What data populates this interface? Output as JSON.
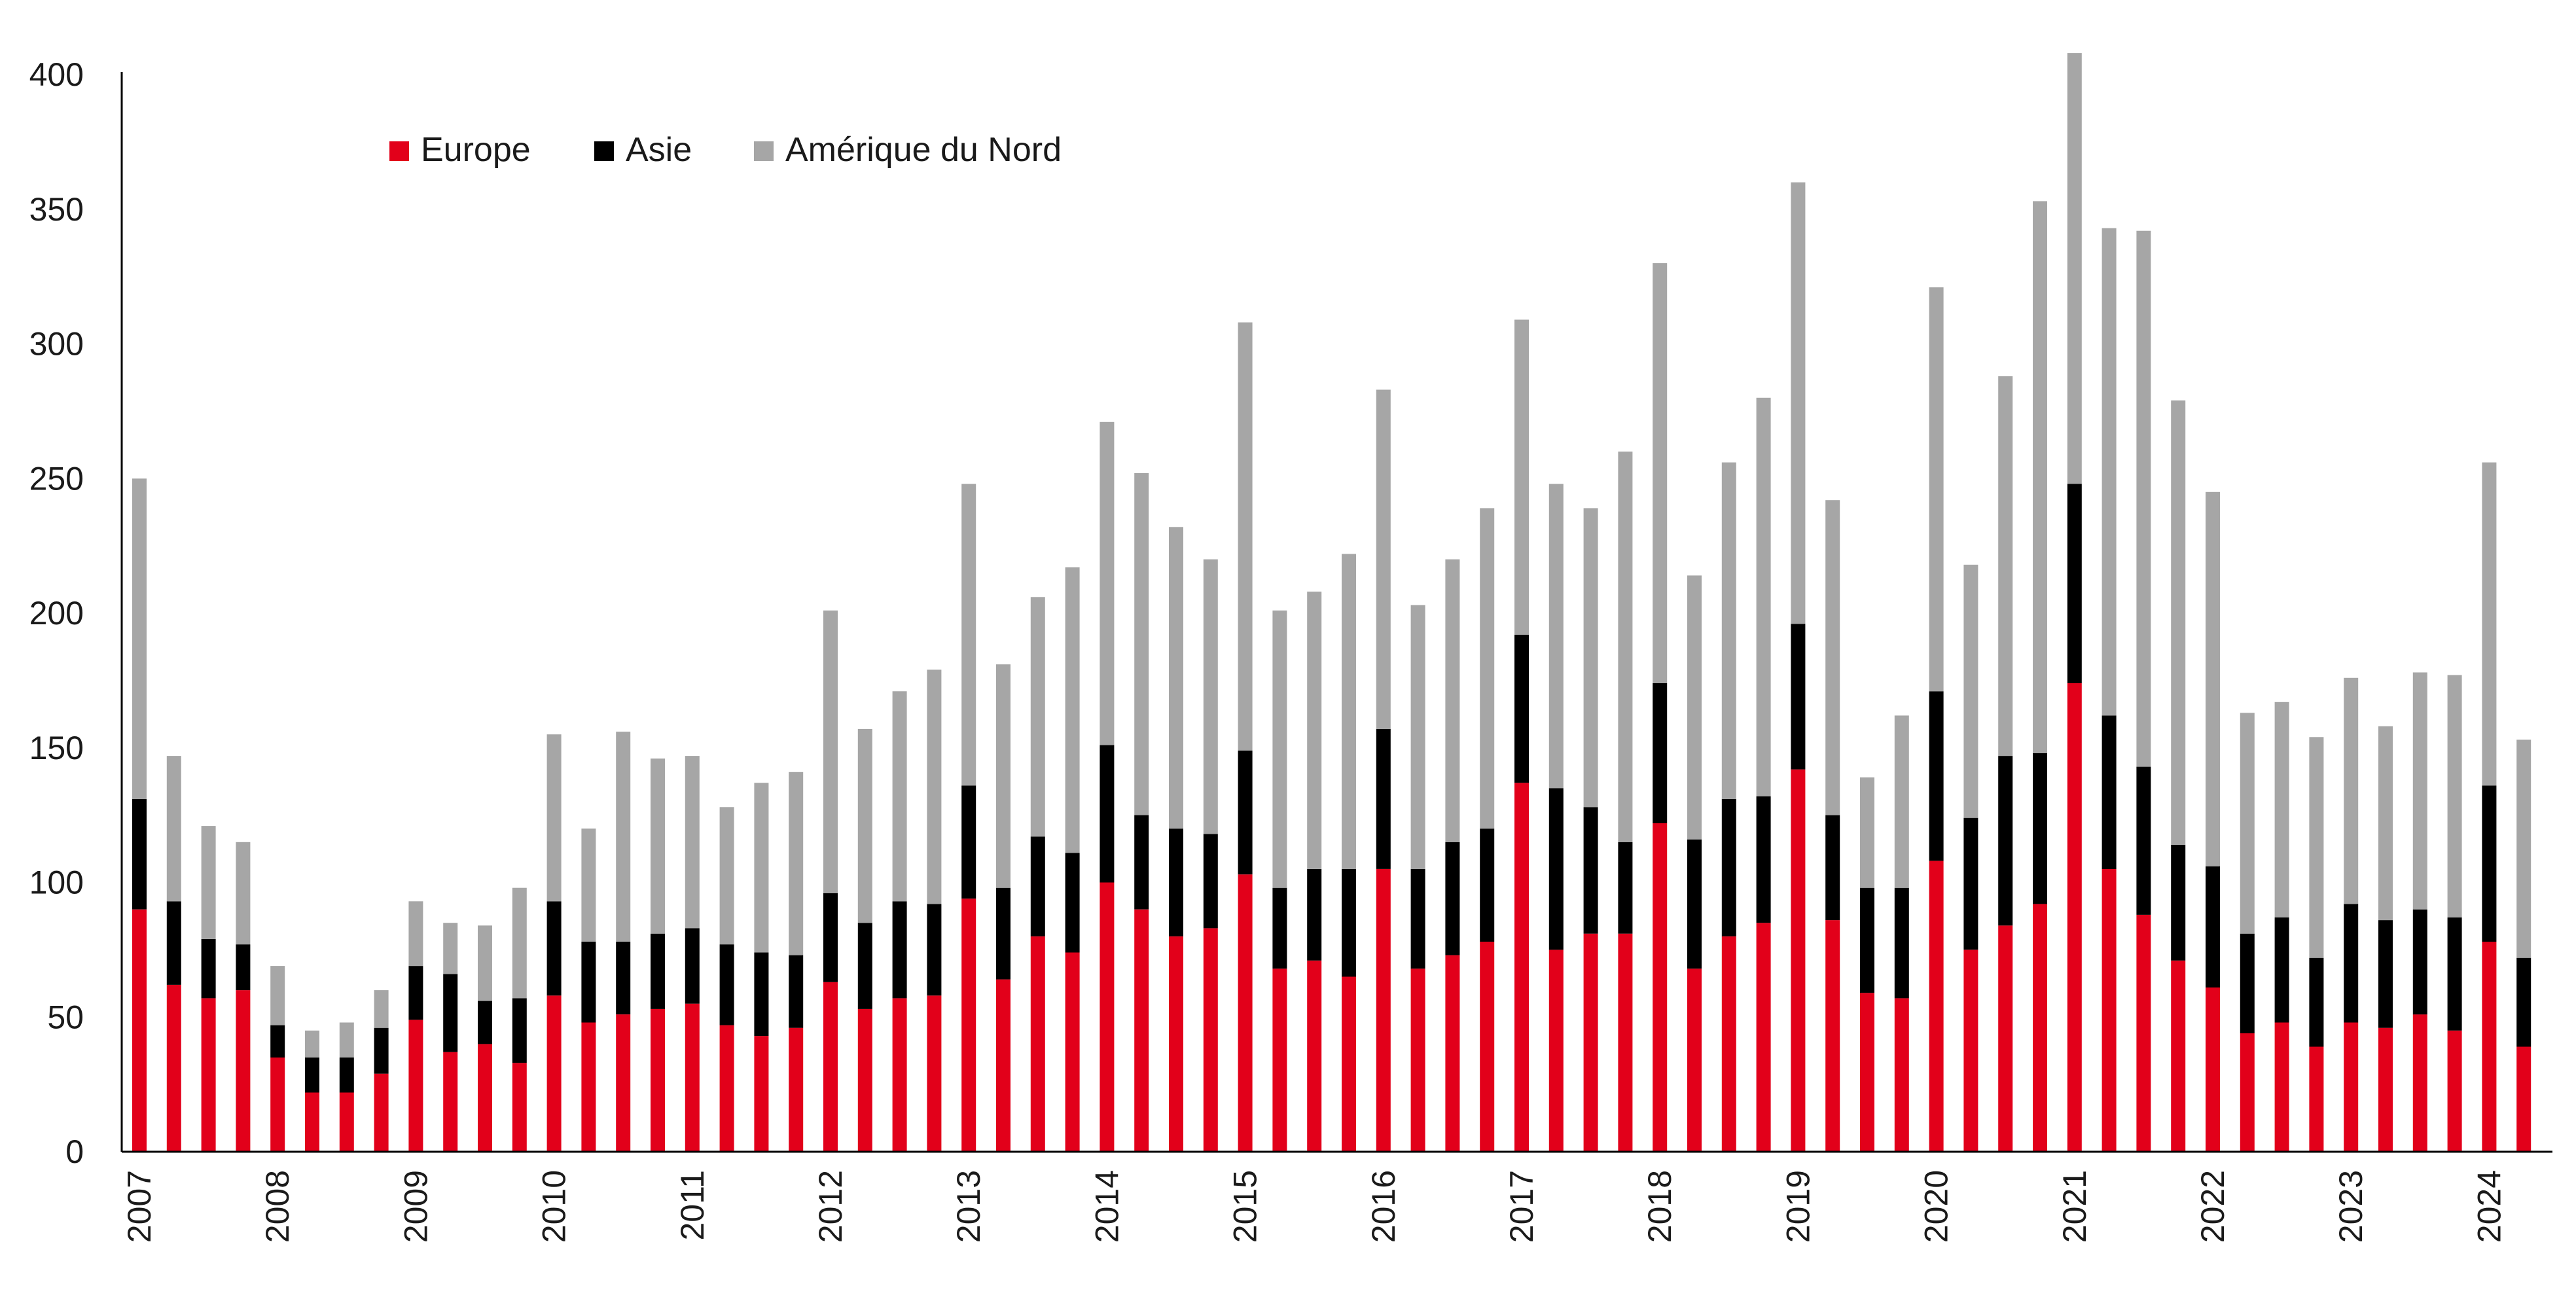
{
  "chart_data": {
    "type": "bar",
    "stacked": true,
    "title": "",
    "xlabel": "",
    "ylabel": "",
    "ylim": [
      0,
      400
    ],
    "yticks": [
      0,
      50,
      100,
      150,
      200,
      250,
      300,
      350,
      400
    ],
    "grid": false,
    "legend_position": "top-left",
    "x_year_labels": [
      "2007",
      "2008",
      "2009",
      "2010",
      "2011",
      "2012",
      "2013",
      "2014",
      "2015",
      "2016",
      "2017",
      "2018",
      "2019",
      "2020",
      "2021",
      "2022",
      "2023",
      "2024"
    ],
    "categories": [
      "2007 T1",
      "2007 T2",
      "2007 T3",
      "2007 T4",
      "2008 T1",
      "2008 T2",
      "2008 T3",
      "2008 T4",
      "2009 T1",
      "2009 T2",
      "2009 T3",
      "2009 T4",
      "2010 T1",
      "2010 T2",
      "2010 T3",
      "2010 T4",
      "2011 T1",
      "2011 T2",
      "2011 T3",
      "2011 T4",
      "2012 T1",
      "2012 T2",
      "2012 T3",
      "2012 T4",
      "2013 T1",
      "2013 T2",
      "2013 T3",
      "2013 T4",
      "2014 T1",
      "2014 T2",
      "2014 T3",
      "2014 T4",
      "2015 T1",
      "2015 T2",
      "2015 T3",
      "2015 T4",
      "2016 T1",
      "2016 T2",
      "2016 T3",
      "2016 T4",
      "2017 T1",
      "2017 T2",
      "2017 T3",
      "2017 T4",
      "2018 T1",
      "2018 T2",
      "2018 T3",
      "2018 T4",
      "2019 T1",
      "2019 T2",
      "2019 T3",
      "2019 T4",
      "2020 T1",
      "2020 T2",
      "2020 T3",
      "2020 T4",
      "2021 T1",
      "2021 T2",
      "2021 T3",
      "2021 T4",
      "2022 T1",
      "2022 T2",
      "2022 T3",
      "2022 T4",
      "2023 T1",
      "2023 T2",
      "2023 T3",
      "2023 T4",
      "2024 T1",
      "2024 T2"
    ],
    "series": [
      {
        "name": "Europe",
        "color": "#e2001a",
        "values": [
          90,
          62,
          57,
          60,
          35,
          22,
          22,
          29,
          49,
          37,
          40,
          33,
          58,
          48,
          51,
          53,
          55,
          47,
          43,
          46,
          63,
          53,
          57,
          58,
          94,
          64,
          80,
          74,
          100,
          90,
          80,
          83,
          103,
          68,
          71,
          65,
          105,
          68,
          73,
          78,
          137,
          75,
          81,
          81,
          122,
          68,
          80,
          85,
          142,
          86,
          59,
          57,
          108,
          75,
          84,
          92,
          174,
          105,
          88,
          71,
          61,
          44,
          48,
          39,
          48,
          46,
          51,
          45,
          78,
          39
        ]
      },
      {
        "name": "Asie",
        "color": "#000000",
        "values": [
          41,
          31,
          22,
          17,
          12,
          13,
          13,
          17,
          20,
          29,
          16,
          24,
          35,
          30,
          27,
          28,
          28,
          30,
          31,
          27,
          33,
          32,
          36,
          34,
          42,
          34,
          37,
          37,
          51,
          35,
          40,
          35,
          46,
          30,
          34,
          40,
          52,
          37,
          42,
          42,
          55,
          60,
          47,
          34,
          52,
          48,
          51,
          47,
          54,
          39,
          39,
          41,
          63,
          49,
          63,
          56,
          74,
          57,
          55,
          43,
          45,
          37,
          39,
          33,
          44,
          40,
          39,
          42,
          58,
          33
        ]
      },
      {
        "name": "Amérique du Nord",
        "color": "#a6a6a6",
        "values": [
          119,
          54,
          42,
          38,
          22,
          10,
          13,
          14,
          24,
          19,
          28,
          41,
          62,
          42,
          78,
          65,
          64,
          51,
          63,
          68,
          105,
          72,
          78,
          87,
          112,
          83,
          89,
          106,
          120,
          127,
          112,
          102,
          159,
          103,
          103,
          117,
          126,
          98,
          105,
          119,
          117,
          113,
          111,
          145,
          156,
          98,
          125,
          148,
          164,
          117,
          41,
          64,
          150,
          94,
          141,
          205,
          160,
          181,
          199,
          165,
          139,
          82,
          80,
          82,
          84,
          72,
          88,
          90,
          120,
          81
        ]
      }
    ]
  }
}
